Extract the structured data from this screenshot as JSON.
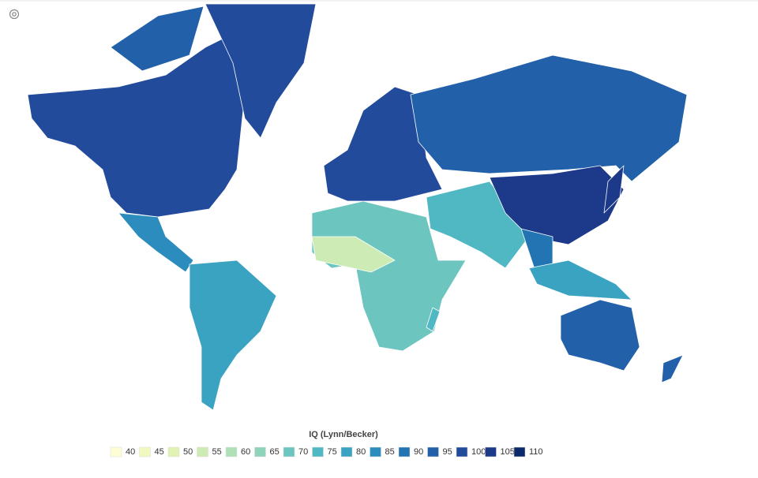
{
  "map": {
    "legend": {
      "title": "IQ (Lynn/Becker)",
      "items": [
        {
          "value": 40,
          "color": "#fdfdd6"
        },
        {
          "value": 45,
          "color": "#f1f9c0"
        },
        {
          "value": 50,
          "color": "#e1f3b3"
        },
        {
          "value": 55,
          "color": "#cdebb4"
        },
        {
          "value": 60,
          "color": "#b0e0b6"
        },
        {
          "value": 65,
          "color": "#8fd3ba"
        },
        {
          "value": 70,
          "color": "#6cc5be"
        },
        {
          "value": 75,
          "color": "#4fb8c3"
        },
        {
          "value": 80,
          "color": "#3ba3c2"
        },
        {
          "value": 85,
          "color": "#2c8cbe"
        },
        {
          "value": 90,
          "color": "#2274b3"
        },
        {
          "value": 95,
          "color": "#2260a9"
        },
        {
          "value": 100,
          "color": "#234b9c"
        },
        {
          "value": 105,
          "color": "#1d3a8a"
        },
        {
          "value": 110,
          "color": "#0c2a6b"
        }
      ]
    }
  }
}
